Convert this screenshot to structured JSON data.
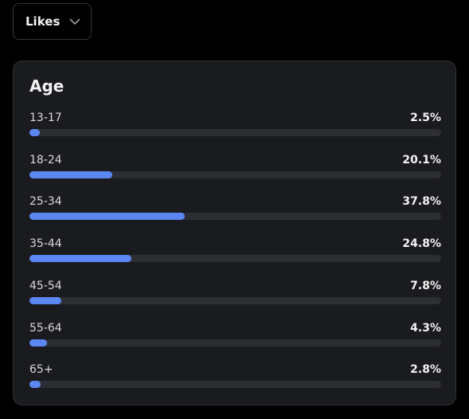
{
  "dropdown": {
    "label": "Likes"
  },
  "chart_data": {
    "type": "bar",
    "orientation": "horizontal",
    "title": "Age",
    "categories": [
      "13-17",
      "18-24",
      "25-34",
      "35-44",
      "45-54",
      "55-64",
      "65+"
    ],
    "values": [
      2.5,
      20.1,
      37.8,
      24.8,
      7.8,
      4.3,
      2.8
    ],
    "value_labels": [
      "2.5%",
      "20.1%",
      "37.8%",
      "24.8%",
      "7.8%",
      "4.3%",
      "2.8%"
    ],
    "xlim": [
      0,
      100
    ],
    "color": "#5b87f3",
    "track_color": "#2d2e34"
  }
}
